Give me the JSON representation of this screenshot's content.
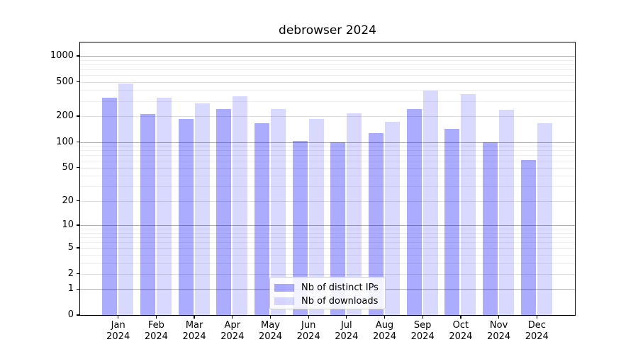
{
  "title": "debrowser 2024",
  "chart_data": {
    "type": "bar",
    "title": "debrowser 2024",
    "categories": [
      "Jan 2024",
      "Feb 2024",
      "Mar 2024",
      "Apr 2024",
      "May 2024",
      "Jun 2024",
      "Jul 2024",
      "Aug 2024",
      "Sep 2024",
      "Oct 2024",
      "Nov 2024",
      "Dec 2024"
    ],
    "series": [
      {
        "name": "Nb of distinct IPs",
        "color": "rgba(0,0,255,0.33)",
        "values": [
          330,
          212,
          186,
          243,
          165,
          102,
          100,
          127,
          240,
          141,
          100,
          62
        ]
      },
      {
        "name": "Nb of downloads",
        "color": "rgba(0,0,255,0.15)",
        "values": [
          480,
          326,
          281,
          340,
          242,
          186,
          214,
          172,
          397,
          358,
          238,
          166
        ]
      }
    ],
    "yscale": "log1p",
    "y_ticks": [
      0,
      1,
      2,
      5,
      10,
      20,
      50,
      100,
      200,
      500,
      1000
    ],
    "ylim": [
      0,
      1400
    ],
    "grid": true,
    "legend_position": "lower center",
    "grid_colors": {
      "major": "#b0b0b0",
      "mid": "#e0e0e0",
      "minor": "#eeeeee"
    }
  }
}
